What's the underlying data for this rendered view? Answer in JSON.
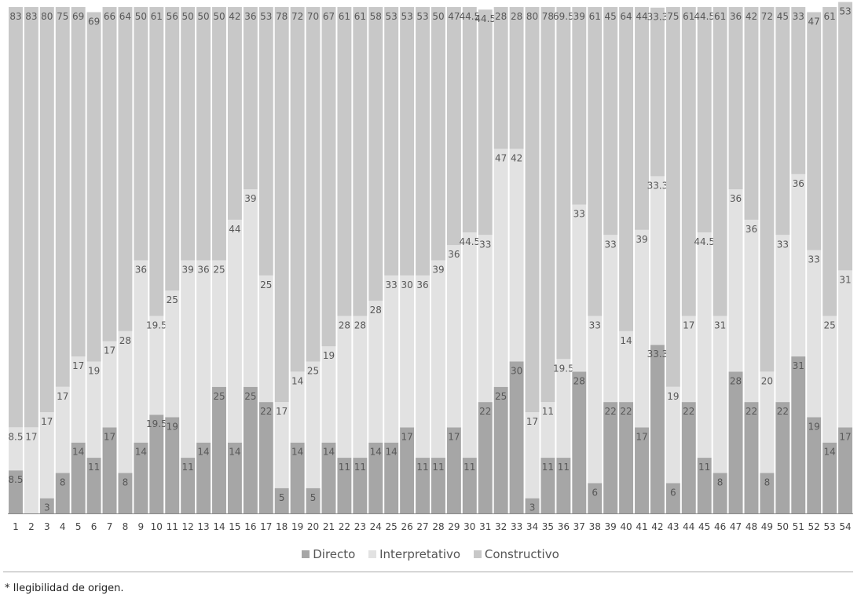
{
  "chart_data": {
    "type": "bar",
    "stacked": true,
    "categories": [
      "1",
      "2",
      "3",
      "4",
      "5",
      "6",
      "7",
      "8",
      "9",
      "10",
      "11",
      "12",
      "13",
      "14",
      "15",
      "16",
      "17",
      "18",
      "19",
      "20",
      "21",
      "22",
      "23",
      "24",
      "25",
      "26",
      "27",
      "28",
      "29",
      "30",
      "31",
      "32",
      "33",
      "34",
      "35",
      "36",
      "37",
      "38",
      "39",
      "40",
      "41",
      "42",
      "43",
      "44",
      "45",
      "46",
      "47",
      "48",
      "49",
      "50",
      "51",
      "52",
      "53",
      "54"
    ],
    "series": [
      {
        "name": "Directo",
        "color": "#a6a6a6",
        "values": [
          8.5,
          0,
          3,
          8,
          14,
          11,
          17,
          8,
          14,
          19.5,
          19,
          11,
          14,
          25,
          14,
          25,
          22,
          5,
          14,
          5,
          14,
          11,
          11,
          14,
          14,
          17,
          11,
          11,
          17,
          11,
          22,
          25,
          30,
          3,
          11,
          11,
          28,
          6,
          22,
          22,
          17,
          33.3,
          6,
          22,
          11,
          8,
          28,
          22,
          8,
          22,
          31,
          19,
          14,
          17
        ],
        "labels": [
          "8.5",
          "0",
          "3",
          "8",
          "14",
          "11",
          "17",
          "8",
          "14",
          "19.5",
          "19",
          "11",
          "14",
          "25",
          "14",
          "25",
          "22",
          "5",
          "14",
          "5",
          "14",
          "11",
          "11",
          "14",
          "14",
          "17",
          "11",
          "11",
          "17",
          "11",
          "22",
          "25",
          "30",
          "3",
          "11",
          "11",
          "28",
          "6",
          "22",
          "22",
          "17",
          "33.3",
          "6",
          "22",
          "11",
          "8",
          "28",
          "22",
          "8",
          "22",
          "31",
          "19",
          "14",
          "17"
        ]
      },
      {
        "name": "Interpretativo",
        "color": "#e2e2e2",
        "values": [
          8.5,
          17,
          17,
          17,
          17,
          19,
          17,
          28,
          36,
          19.5,
          25,
          39,
          36,
          25,
          44,
          39,
          25,
          17,
          14,
          25,
          19,
          28,
          28,
          28,
          33,
          30,
          36,
          39,
          36,
          44.5,
          33,
          47,
          42,
          17,
          11,
          19.5,
          33,
          33,
          33,
          14,
          39,
          33.3,
          19,
          17,
          44.5,
          31,
          36,
          36,
          20,
          33,
          36,
          33,
          25,
          31
        ],
        "labels": [
          "8.5",
          "17",
          "17",
          "17",
          "17",
          "19",
          "17",
          "28",
          "36",
          "19.5",
          "25",
          "39",
          "36",
          "25",
          "44",
          "39",
          "25",
          "17",
          "14",
          "25",
          "19",
          "28",
          "28",
          "28",
          "33",
          "30",
          "36",
          "39",
          "36",
          "44.5",
          "33",
          "47",
          "42",
          "17",
          "11",
          "19.5",
          "33",
          "33",
          "33",
          "14",
          "39",
          "33.3",
          "19",
          "17",
          "44.5",
          "31",
          "36",
          "36",
          "20",
          "33",
          "36",
          "33",
          "25",
          "31"
        ]
      },
      {
        "name": "Constructivo",
        "color": "#c8c8c8",
        "values": [
          83,
          83,
          80,
          75,
          69,
          69,
          66,
          64,
          50,
          61,
          56,
          50,
          50,
          50,
          42,
          36,
          53,
          78,
          72,
          70,
          67,
          61,
          61,
          58,
          53,
          53,
          53,
          50,
          47,
          44.5,
          44.5,
          28,
          28,
          80,
          78,
          69.5,
          39,
          61,
          45,
          64,
          44,
          33.3,
          75,
          61,
          44.5,
          61,
          36,
          42,
          72,
          45,
          33,
          47,
          61,
          53
        ],
        "labels": [
          "83",
          "83",
          "80",
          "75",
          "69",
          "69",
          "66",
          "64",
          "50",
          "61",
          "56",
          "50",
          "50",
          "50",
          "42",
          "36",
          "53",
          "78",
          "72",
          "70",
          "67",
          "61",
          "61",
          "58",
          "53",
          "53",
          "53",
          "50",
          "47",
          "44.5",
          "44.5",
          "28",
          "28",
          "80",
          "78",
          "69.5",
          "39",
          "61",
          "45",
          "64",
          "44",
          "33.3",
          "75",
          "61",
          "44.5",
          "61",
          "36",
          "42",
          "72",
          "45",
          "33",
          "47",
          "61",
          "53"
        ]
      }
    ],
    "ylim": [
      0,
      100
    ],
    "legend_position": "bottom"
  },
  "legend": {
    "directo": "Directo",
    "interpretativo": "Interpretativo",
    "constructivo": "Constructivo"
  },
  "footnote": "* Ilegibilidad de origen."
}
